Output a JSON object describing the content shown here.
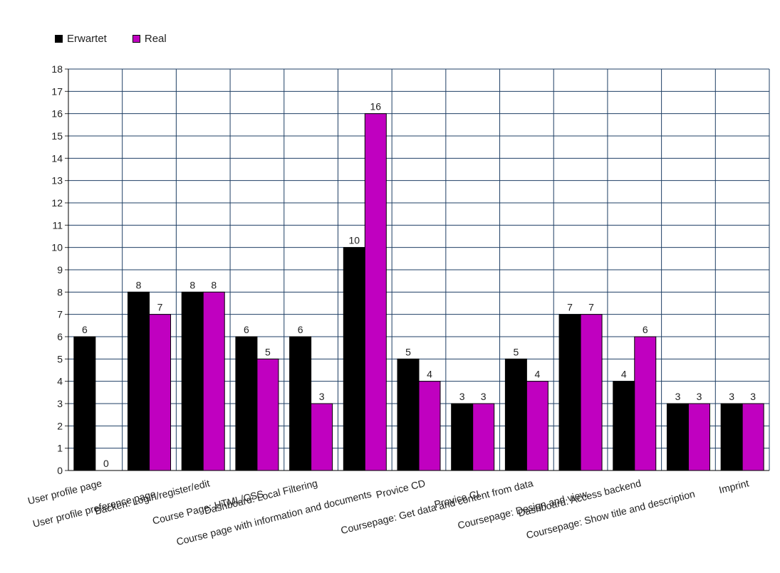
{
  "chart_data": {
    "type": "bar",
    "title": "",
    "xlabel": "",
    "ylabel": "",
    "ylim": [
      0,
      18
    ],
    "yticks": [
      0,
      1,
      2,
      3,
      4,
      5,
      6,
      7,
      8,
      9,
      10,
      11,
      12,
      13,
      14,
      15,
      16,
      17,
      18
    ],
    "grid": true,
    "legend_position": "top-left",
    "categories": [
      "User profile page",
      "User profile preference page",
      "Backen: Login/register/edit",
      "Course Page: HTML/CSS",
      "Dashboard: Local Filtering",
      "Course page with information and documents",
      "Provice CD",
      "Provice CI",
      "Coursepage: Get data and content from data",
      "Coursepage: Design and view",
      "Dashboard: Access backend",
      "Coursepage: Show title and description",
      "Imprint"
    ],
    "series": [
      {
        "name": "Erwartet",
        "color": "#000000",
        "values": [
          6,
          8,
          8,
          6,
          6,
          10,
          5,
          3,
          5,
          7,
          4,
          3,
          3
        ]
      },
      {
        "name": "Real",
        "color": "#c000c0",
        "values": [
          0,
          7,
          8,
          5,
          3,
          16,
          4,
          3,
          4,
          7,
          6,
          3,
          3
        ]
      }
    ]
  }
}
